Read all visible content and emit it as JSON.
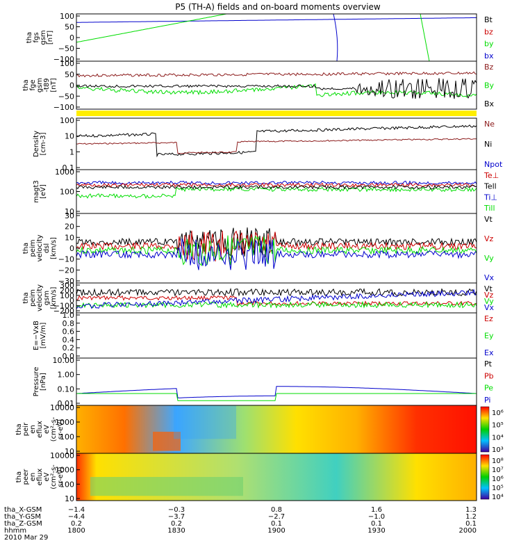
{
  "title": "P5 (TH-A) fields and on-board moments overview",
  "colors": {
    "black": "#000000",
    "red": "#cc0000",
    "green": "#00dd00",
    "blue": "#0000cc",
    "darkred": "#8b1a1a",
    "yellow": "#ffee00"
  },
  "chart_data": [
    {
      "type": "line",
      "ylabel": [
        "tha",
        "fgs",
        "gsm",
        "[nT]"
      ],
      "yticks": [
        "100",
        "50",
        "0",
        "−50",
        "−100"
      ],
      "legend": [
        {
          "text": "Bt",
          "color": "black"
        },
        {
          "text": "bz",
          "color": "red"
        },
        {
          "text": "by",
          "color": "green"
        },
        {
          "text": "bx",
          "color": "blue"
        }
      ]
    },
    {
      "type": "line",
      "ylabel": [
        "tha",
        "fge",
        "gsm",
        "-t89",
        "[nT]"
      ],
      "yticks": [
        "100",
        "50",
        "0",
        "−50",
        "−100"
      ],
      "legend": [
        {
          "text": "Bz",
          "color": "darkred"
        },
        {
          "text": "By",
          "color": "green"
        },
        {
          "text": "Bx",
          "color": "black"
        }
      ]
    },
    {
      "type": "line",
      "ylabel": [
        "Density",
        "[cm-3]"
      ],
      "yticks": [
        "100",
        "10",
        "1",
        "0.1"
      ],
      "legend": [
        {
          "text": "Ne",
          "color": "darkred"
        },
        {
          "text": "Ni",
          "color": "black"
        },
        {
          "text": "Npot",
          "color": "blue"
        }
      ]
    },
    {
      "type": "line",
      "ylabel": [
        "magt3",
        "[eV]"
      ],
      "yticks": [
        "1000",
        "100",
        "10"
      ],
      "legend": [
        {
          "text": "Te⊥",
          "color": "red"
        },
        {
          "text": "Tell",
          "color": "black"
        },
        {
          "text": "Ti⊥",
          "color": "blue"
        },
        {
          "text": "Till",
          "color": "green"
        }
      ]
    },
    {
      "type": "line",
      "ylabel": [
        "tha",
        "peim",
        "velocity",
        "dsl",
        "[km/s]"
      ],
      "yticks": [
        "30",
        "20",
        "10",
        "0",
        "−10",
        "−20",
        "−30"
      ],
      "legend": [
        {
          "text": "Vt",
          "color": "black"
        },
        {
          "text": "Vz",
          "color": "red"
        },
        {
          "text": "Vy",
          "color": "green"
        },
        {
          "text": "Vx",
          "color": "blue"
        }
      ]
    },
    {
      "type": "line",
      "ylabel": [
        "tha",
        "peim",
        "velocity",
        "gsm",
        "[km/s]"
      ],
      "yticks": [
        "300",
        "200",
        "100",
        "0",
        "−100",
        "−200"
      ],
      "legend": [
        {
          "text": "Vt",
          "color": "black"
        },
        {
          "text": "Vz",
          "color": "red"
        },
        {
          "text": "Vy",
          "color": "green"
        },
        {
          "text": "Vx",
          "color": "blue"
        }
      ]
    },
    {
      "type": "line",
      "ylabel": [
        "E=−VxB",
        "[mV/m]"
      ],
      "yticks": [
        "1.0",
        "0.8",
        "0.6",
        "0.4",
        "0.2",
        "0.0"
      ],
      "legend": [
        {
          "text": "Ez",
          "color": "red"
        },
        {
          "text": "Ey",
          "color": "green"
        },
        {
          "text": "Ex",
          "color": "blue"
        }
      ]
    },
    {
      "type": "line",
      "ylabel": [
        "Pressure",
        "[nPa]"
      ],
      "yticks": [
        "10.00",
        "1.00",
        "0.10",
        "0.01"
      ],
      "legend": [
        {
          "text": "Pt",
          "color": "black"
        },
        {
          "text": "Pb",
          "color": "red"
        },
        {
          "text": "Pe",
          "color": "green"
        },
        {
          "text": "Pi",
          "color": "blue"
        }
      ]
    },
    {
      "type": "heatmap",
      "ylabel": [
        "tha",
        "peir",
        "en",
        "eflux",
        "eV",
        "(cm²-s-",
        "sr-eV)"
      ],
      "yticks": [
        "10000",
        "1000",
        "100",
        "10"
      ],
      "colorbar": [
        "10⁶",
        "10⁵",
        "10⁴",
        "10³"
      ]
    },
    {
      "type": "heatmap",
      "ylabel": [
        "tha",
        "peer",
        "en",
        "eflux",
        "eV",
        "(cm²-s-",
        "sr-eV)"
      ],
      "yticks": [
        "10000",
        "1000",
        "100",
        "10"
      ],
      "colorbar": [
        "10⁸",
        "10⁷",
        "10⁶",
        "10⁵",
        "10⁴"
      ]
    }
  ],
  "xaxis": {
    "rows": [
      {
        "label": "tha_X-GSM",
        "values": [
          "−1.4",
          "−0.3",
          "0.8",
          "1.6",
          "1.3"
        ]
      },
      {
        "label": "tha_Y-GSM",
        "values": [
          "−4.4",
          "−3.7",
          "−2.7",
          "−1.0",
          "1.2"
        ]
      },
      {
        "label": "tha_Z-GSM",
        "values": [
          "0.2",
          "0.2",
          "0.1",
          "0.1",
          "0.1"
        ]
      },
      {
        "label": "hhmm",
        "values": [
          "1800",
          "1830",
          "1900",
          "1930",
          "2000"
        ]
      }
    ],
    "date": "2010 Mar 29"
  }
}
